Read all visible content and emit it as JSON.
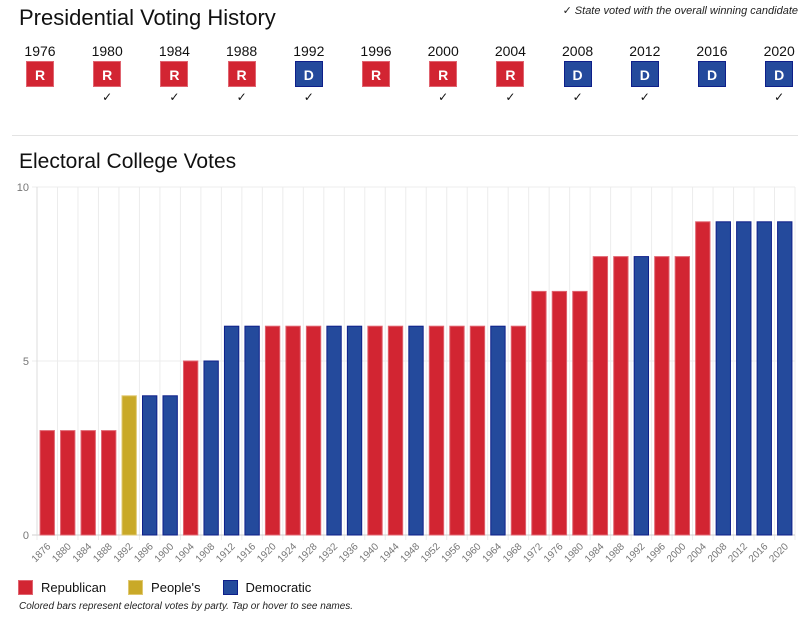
{
  "header": {
    "title": "Presidential Voting History",
    "legend_note": "State voted with the overall winning candidate",
    "check_glyph": "✓"
  },
  "history": [
    {
      "year": "1976",
      "party": "R",
      "with_winner": false
    },
    {
      "year": "1980",
      "party": "R",
      "with_winner": true
    },
    {
      "year": "1984",
      "party": "R",
      "with_winner": true
    },
    {
      "year": "1988",
      "party": "R",
      "with_winner": true
    },
    {
      "year": "1992",
      "party": "D",
      "with_winner": true
    },
    {
      "year": "1996",
      "party": "R",
      "with_winner": false
    },
    {
      "year": "2000",
      "party": "R",
      "with_winner": true
    },
    {
      "year": "2004",
      "party": "R",
      "with_winner": true
    },
    {
      "year": "2008",
      "party": "D",
      "with_winner": true
    },
    {
      "year": "2012",
      "party": "D",
      "with_winner": true
    },
    {
      "year": "2016",
      "party": "D",
      "with_winner": false
    },
    {
      "year": "2020",
      "party": "D",
      "with_winner": true
    }
  ],
  "colors": {
    "republican": "#d22532",
    "republican_border": "#e06470",
    "peoples": "#c9a928",
    "peoples_border": "#e0c870",
    "democratic": "#244a9c",
    "democratic_border": "#0e1f8a",
    "grid": "#ececec",
    "axis_text": "#777777"
  },
  "chart_data": {
    "type": "bar",
    "title": "Electoral College Votes",
    "xlabel": "",
    "ylabel": "",
    "ylim": [
      0,
      10
    ],
    "yticks": [
      0,
      5,
      10
    ],
    "grid": true,
    "categories": [
      "1876",
      "1880",
      "1884",
      "1888",
      "1892",
      "1896",
      "1900",
      "1904",
      "1908",
      "1912",
      "1916",
      "1920",
      "1924",
      "1928",
      "1932",
      "1936",
      "1940",
      "1944",
      "1948",
      "1952",
      "1956",
      "1960",
      "1964",
      "1968",
      "1972",
      "1976",
      "1980",
      "1984",
      "1988",
      "1992",
      "1996",
      "2000",
      "2004",
      "2008",
      "2012",
      "2016",
      "2020"
    ],
    "values": [
      3,
      3,
      3,
      3,
      4,
      4,
      4,
      5,
      5,
      6,
      6,
      6,
      6,
      6,
      6,
      6,
      6,
      6,
      6,
      6,
      6,
      6,
      6,
      6,
      7,
      7,
      7,
      8,
      8,
      8,
      8,
      8,
      9,
      9,
      9,
      9,
      9
    ],
    "parties": [
      "republican",
      "republican",
      "republican",
      "republican",
      "peoples",
      "democratic",
      "democratic",
      "republican",
      "democratic",
      "democratic",
      "democratic",
      "republican",
      "republican",
      "republican",
      "democratic",
      "democratic",
      "republican",
      "republican",
      "democratic",
      "republican",
      "republican",
      "republican",
      "democratic",
      "republican",
      "republican",
      "republican",
      "republican",
      "republican",
      "republican",
      "democratic",
      "republican",
      "republican",
      "republican",
      "democratic",
      "democratic",
      "democratic",
      "democratic"
    ],
    "legend": [
      {
        "key": "republican",
        "label": "Republican"
      },
      {
        "key": "peoples",
        "label": "People's"
      },
      {
        "key": "democratic",
        "label": "Democratic"
      }
    ],
    "legend_position": "bottom-left",
    "caption": "Colored bars represent electoral votes by party. Tap or hover to see names."
  }
}
